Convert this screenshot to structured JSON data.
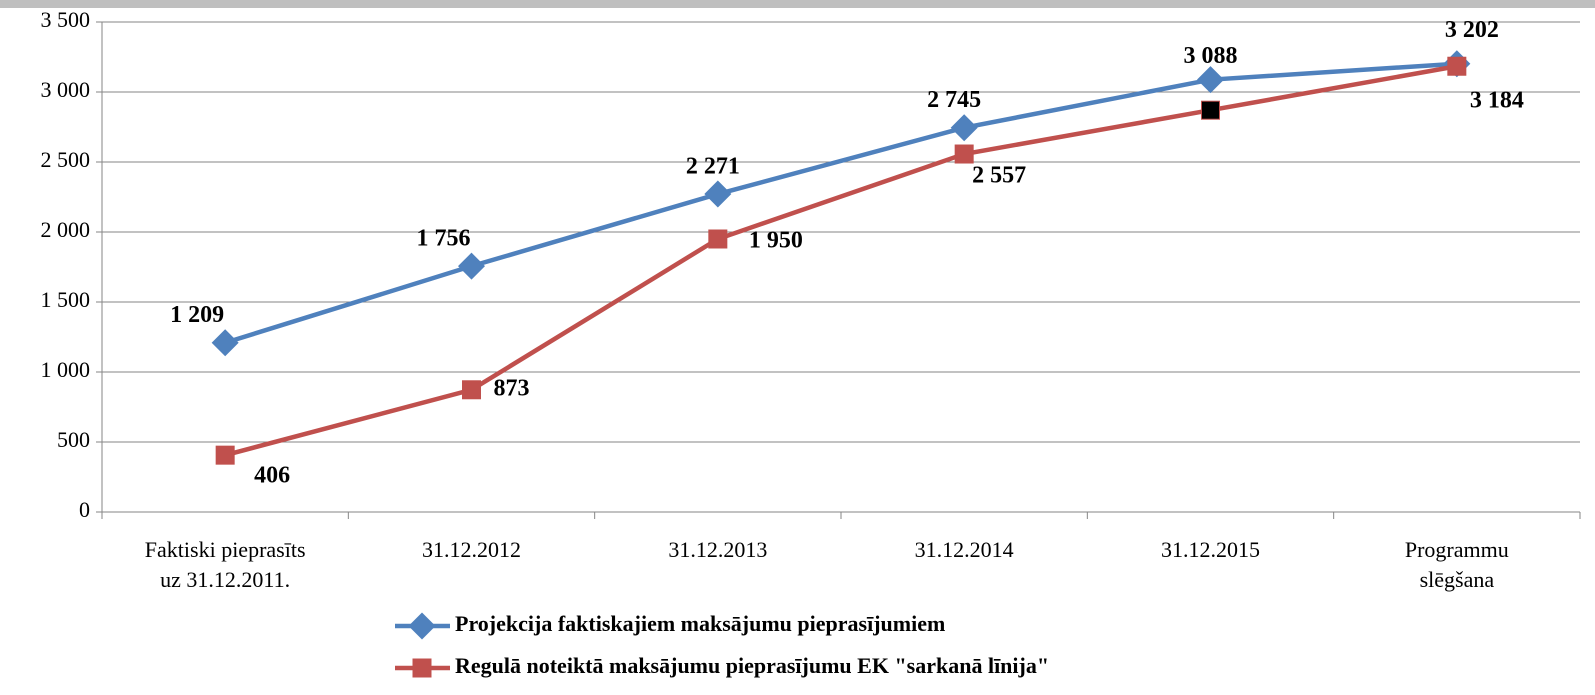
{
  "chart_data": {
    "type": "line",
    "categories": [
      "Faktiski pieprasīts\nuz 31.12.2011.",
      "31.12.2012",
      "31.12.2013",
      "31.12.2014",
      "31.12.2015",
      "Programmu\nslēgšana"
    ],
    "series": [
      {
        "name": "Projekcija faktiskajiem maksājumu pieprasījumiem",
        "color": "#4f81bd",
        "marker": "diamond",
        "values": [
          1209,
          1756,
          2271,
          2745,
          3088,
          3202
        ],
        "value_labels": [
          "1 209",
          "1 756",
          "2 271",
          "2 745",
          "3 088",
          "3 202"
        ]
      },
      {
        "name": "Regulā noteiktā maksājumu pieprasījumu EK \"sarkanā līnija\"",
        "color": "#c0504d",
        "marker": "square",
        "values": [
          406,
          873,
          1950,
          2557,
          2870,
          3184
        ],
        "value_labels": [
          "406",
          "873",
          "1 950",
          "2 557",
          null,
          "3 184"
        ],
        "point_colors": [
          null,
          null,
          null,
          null,
          "#000000",
          null
        ]
      }
    ],
    "ylim": [
      0,
      3500
    ],
    "yticks": [
      0,
      500,
      {
        "value": 1000,
        "label": "1 000"
      },
      {
        "value": 1500,
        "label": "1 500"
      },
      {
        "value": 2000,
        "label": "2 000"
      },
      {
        "value": 2500,
        "label": "2 500"
      },
      {
        "value": 3000,
        "label": "3 000"
      },
      {
        "value": 3500,
        "label": "3 500"
      }
    ],
    "grid": true,
    "legend": "bottom"
  }
}
